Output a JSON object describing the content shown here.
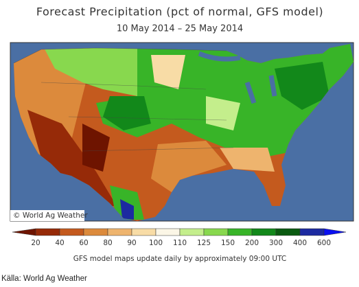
{
  "header": {
    "title": "Forecast Precipitation (pct of normal, GFS model)",
    "subtitle": "10 May 2014 – 25 May 2014"
  },
  "map": {
    "watermark": "© World Ag Weather"
  },
  "legend": {
    "ticks": [
      20,
      40,
      60,
      80,
      90,
      100,
      110,
      125,
      150,
      200,
      300,
      400,
      600
    ],
    "colors": [
      "#6e1400",
      "#962a08",
      "#c45a1e",
      "#dc8a3c",
      "#eeb46e",
      "#f8dca6",
      "#fbf6e6",
      "#c4ee8c",
      "#88d84e",
      "#38b428",
      "#12881a",
      "#0a5a10",
      "#1c2aa0",
      "#0a10f0"
    ]
  },
  "footer": {
    "note": "GFS model maps update daily by approximately 09:00 UTC",
    "source": "Källa: World Ag Weather"
  }
}
